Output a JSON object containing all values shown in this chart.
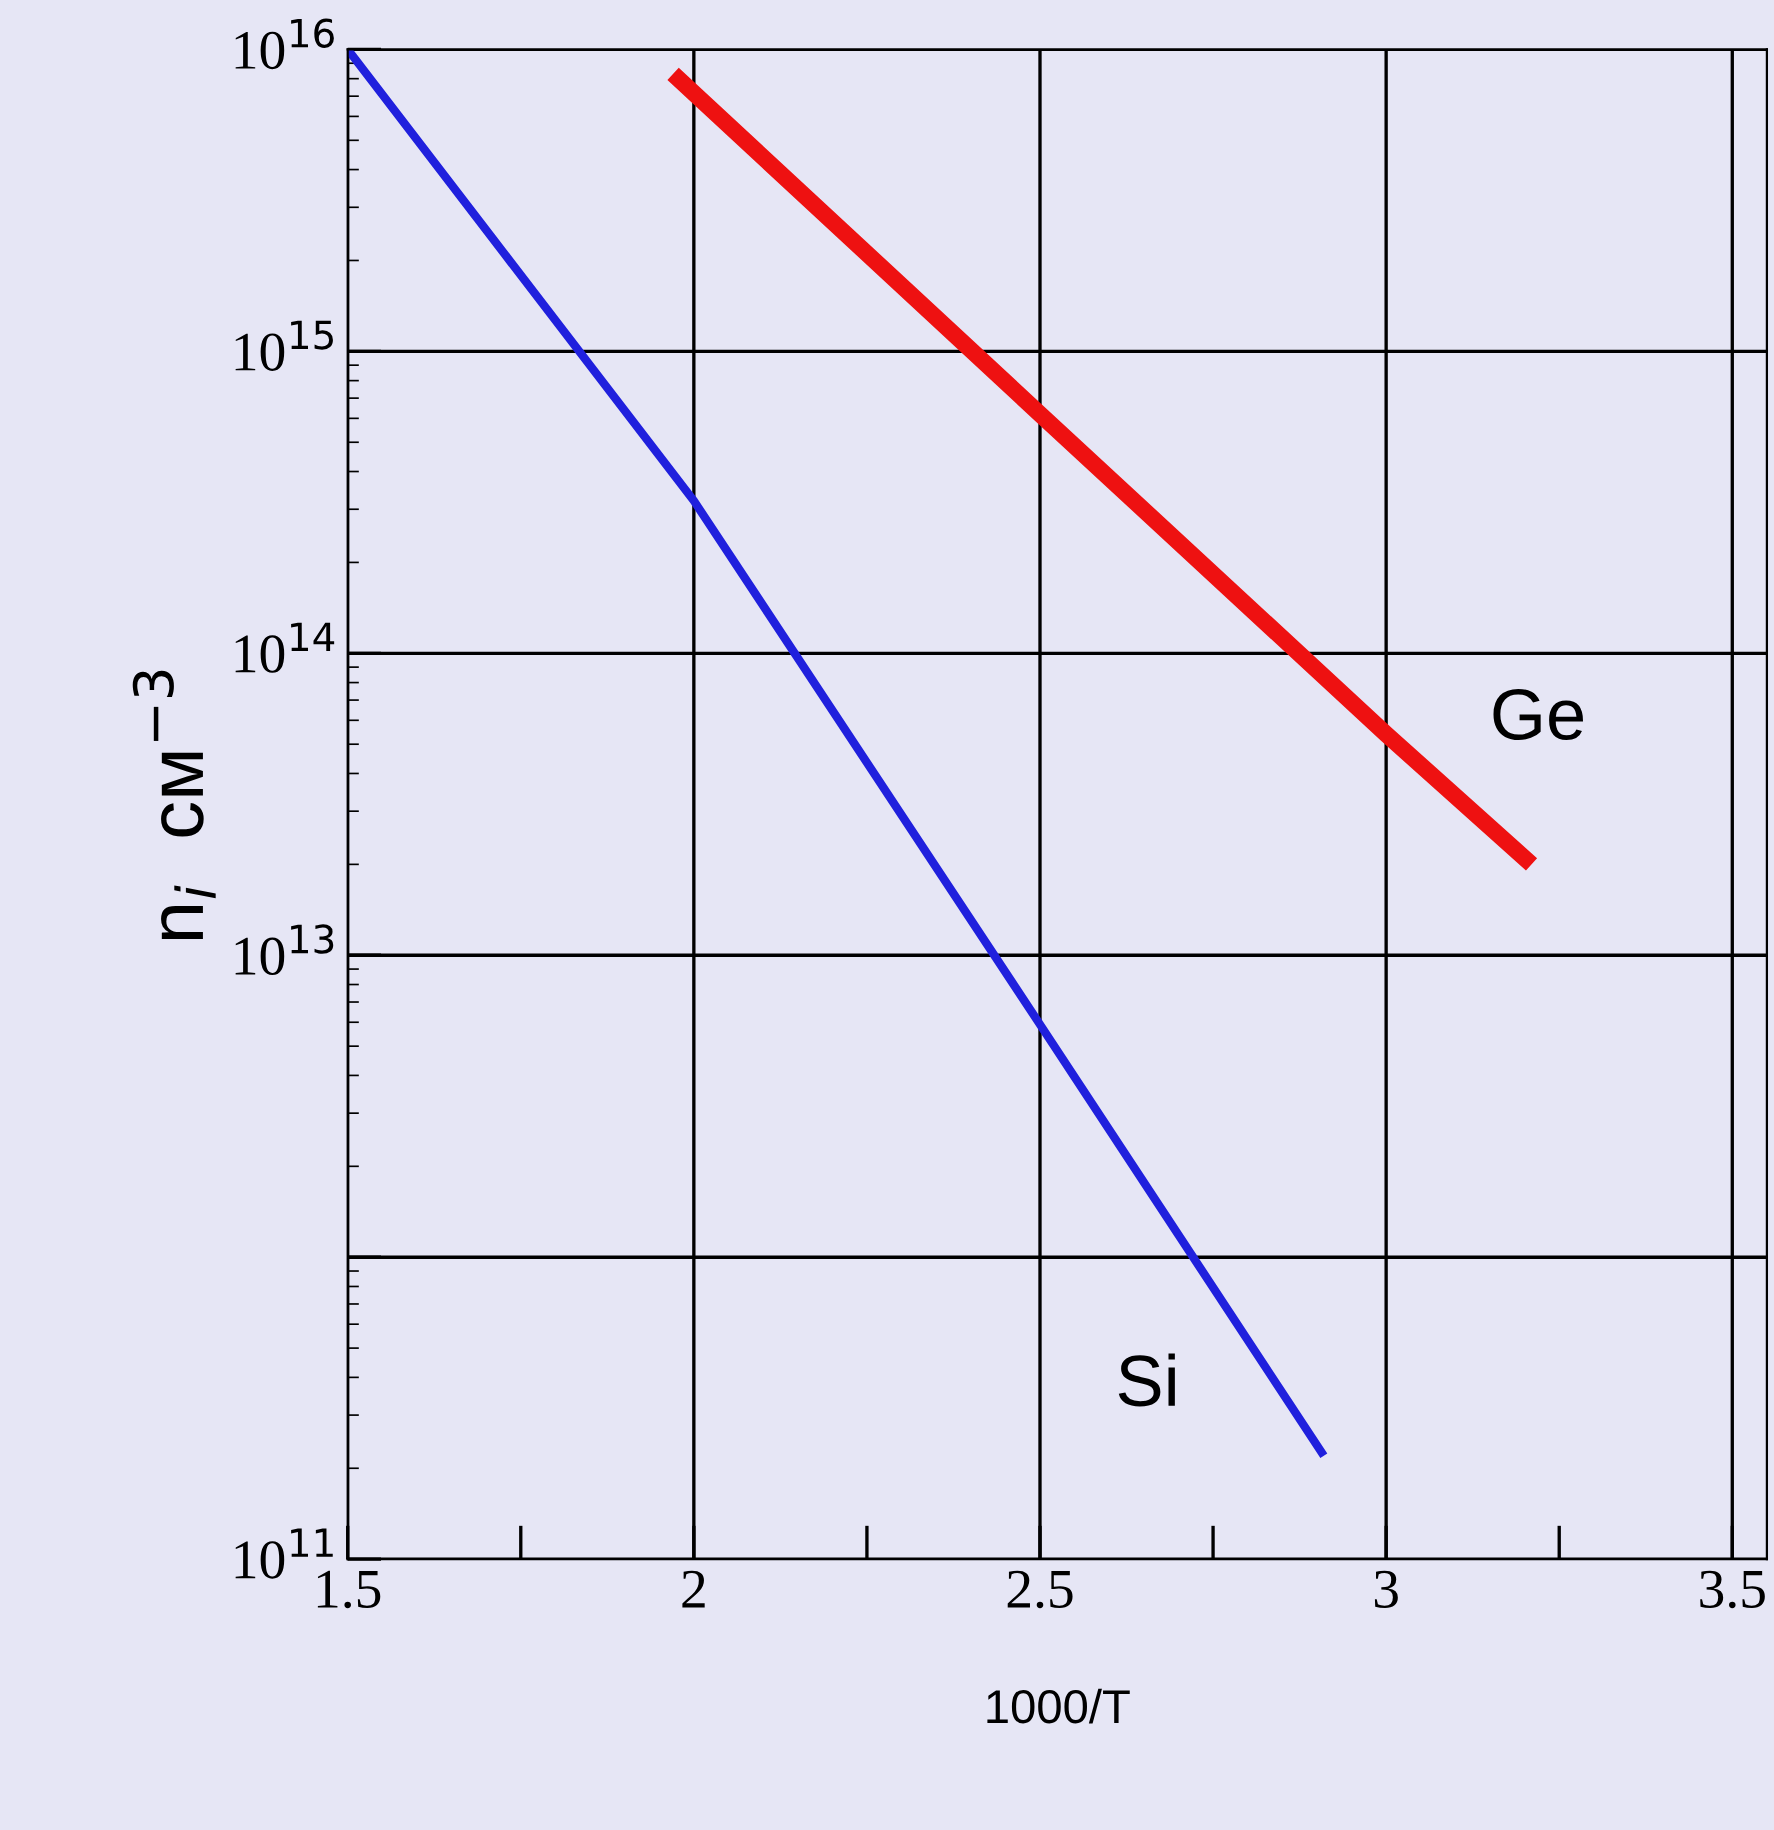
{
  "chart_data": {
    "type": "line",
    "xlabel": "1000/T",
    "ylabel": "n$_{i}$  cм$^{−3}$",
    "log": "y",
    "xlim": [
      1.5,
      3.55
    ],
    "ylim": [
      100000000000.0,
      1e+16
    ],
    "xticks": [
      1.5,
      2,
      2.5,
      3,
      3.5
    ],
    "yticks": [
      {
        "value": 100000000000.0,
        "label": "10$^{11}$"
      },
      {
        "value": 1000000000000.0,
        "label": null
      },
      {
        "value": 10000000000000.0,
        "label": "10$^{13}$"
      },
      {
        "value": 100000000000000.0,
        "label": "10$^{14}$"
      },
      {
        "value": 1000000000000000.0,
        "label": "10$^{15}$"
      },
      {
        "value": 1e+16,
        "label": "10$^{16}$"
      }
    ],
    "grid": true,
    "legend": false,
    "marker": "none",
    "line_style": "solid",
    "series": [
      {
        "name": "Si",
        "color": "#2020dd",
        "x": [
          1.5,
          2.0,
          2.5,
          2.91
        ],
        "values": [
          1e+16,
          320000000000000.0,
          5900000000000.0,
          220000000000.0
        ]
      },
      {
        "name": "Ge",
        "color": "#ee1111",
        "x": [
          1.97,
          2.5,
          3.0,
          3.21
        ],
        "values": [
          8300000000000000.0,
          620000000000000.0,
          54000000000000.0,
          20000000000000.0
        ]
      }
    ]
  }
}
